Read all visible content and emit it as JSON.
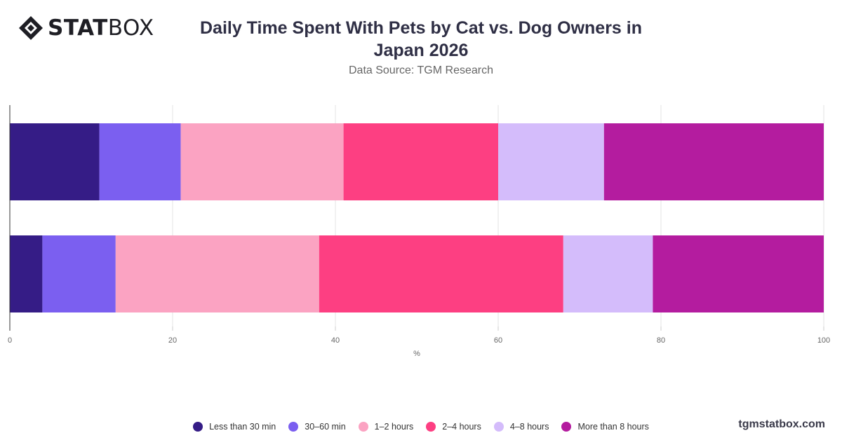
{
  "brand": {
    "bold": "STAT",
    "light": "BOX"
  },
  "footer": "tgmstatbox.com",
  "colors": [
    "#351c86",
    "#7b5ff0",
    "#fba3c2",
    "#fd3f82",
    "#d4bcfb",
    "#b41c9f"
  ],
  "chart_data": {
    "type": "bar",
    "orientation": "horizontal",
    "stacked": true,
    "title": "Daily Time Spent With Pets by Cat vs. Dog Owners in Japan 2026",
    "subtitle": "Data Source: TGM Research",
    "xlabel": "%",
    "ylabel": "",
    "xlim": [
      0,
      100
    ],
    "xticks": [
      0,
      20,
      40,
      60,
      80,
      100
    ],
    "grid": true,
    "legend_position": "bottom",
    "categories": [
      "",
      ""
    ],
    "series": [
      {
        "name": "Less than 30 min",
        "values": [
          11,
          4
        ]
      },
      {
        "name": "30–60 min",
        "values": [
          10,
          9
        ]
      },
      {
        "name": "1–2 hours",
        "values": [
          20,
          25
        ]
      },
      {
        "name": "2–4 hours",
        "values": [
          19,
          30
        ]
      },
      {
        "name": "4–8 hours",
        "values": [
          13,
          11
        ]
      },
      {
        "name": "More than 8 hours",
        "values": [
          27,
          21
        ]
      }
    ]
  }
}
